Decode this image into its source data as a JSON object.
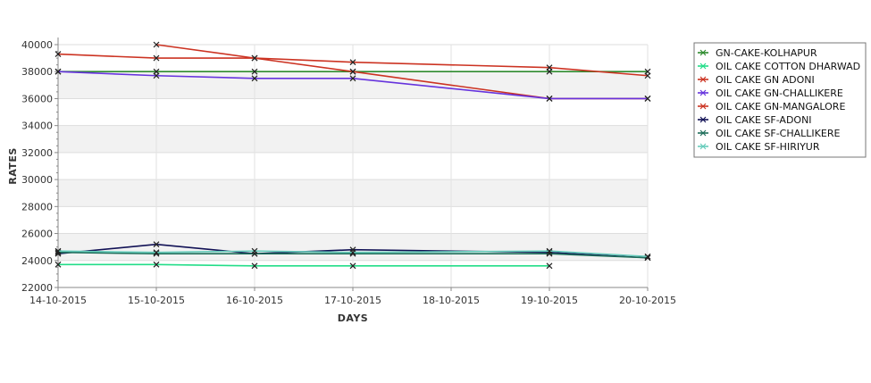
{
  "chart_data": {
    "type": "line",
    "xlabel": "DAYS",
    "ylabel": "RATES",
    "categories": [
      "14-10-2015",
      "15-10-2015",
      "16-10-2015",
      "17-10-2015",
      "18-10-2015",
      "19-10-2015",
      "20-10-2015"
    ],
    "ylim": [
      22000,
      40000
    ],
    "yticks": [
      22000,
      24000,
      26000,
      28000,
      30000,
      32000,
      34000,
      36000,
      38000,
      40000
    ],
    "grid": true,
    "legend": "right",
    "series": [
      {
        "name": "GN-CAKE-KOLHAPUR",
        "color": "#2e8b2e",
        "values": [
          38000,
          38000,
          38000,
          38000,
          null,
          38000,
          38000
        ]
      },
      {
        "name": "OIL CAKE COTTON DHARWAD",
        "color": "#22dd88",
        "values": [
          23700,
          23700,
          23600,
          23600,
          null,
          23600,
          null
        ]
      },
      {
        "name": "OIL CAKE GN ADONI",
        "color": "#cc3322",
        "values": [
          null,
          40000,
          39000,
          38000,
          null,
          36000,
          36000
        ]
      },
      {
        "name": "OIL CAKE GN-CHALLIKERE",
        "color": "#6633dd",
        "values": [
          38000,
          37700,
          37500,
          37500,
          null,
          36000,
          36000
        ]
      },
      {
        "name": "OIL CAKE GN-MANGALORE",
        "color": "#cc3322",
        "values": [
          39300,
          39000,
          39000,
          38700,
          null,
          38300,
          37700
        ]
      },
      {
        "name": "OIL CAKE SF-ADONI",
        "color": "#111155",
        "values": [
          24500,
          25200,
          24500,
          24800,
          null,
          24600,
          24200
        ]
      },
      {
        "name": "OIL CAKE SF-CHALLIKERE",
        "color": "#1e6e5a",
        "values": [
          24600,
          24500,
          24500,
          24500,
          null,
          24500,
          24200
        ]
      },
      {
        "name": "OIL CAKE SF-HIRIYUR",
        "color": "#66ccbb",
        "values": [
          24700,
          24600,
          24700,
          24600,
          null,
          24700,
          24300
        ]
      }
    ]
  }
}
